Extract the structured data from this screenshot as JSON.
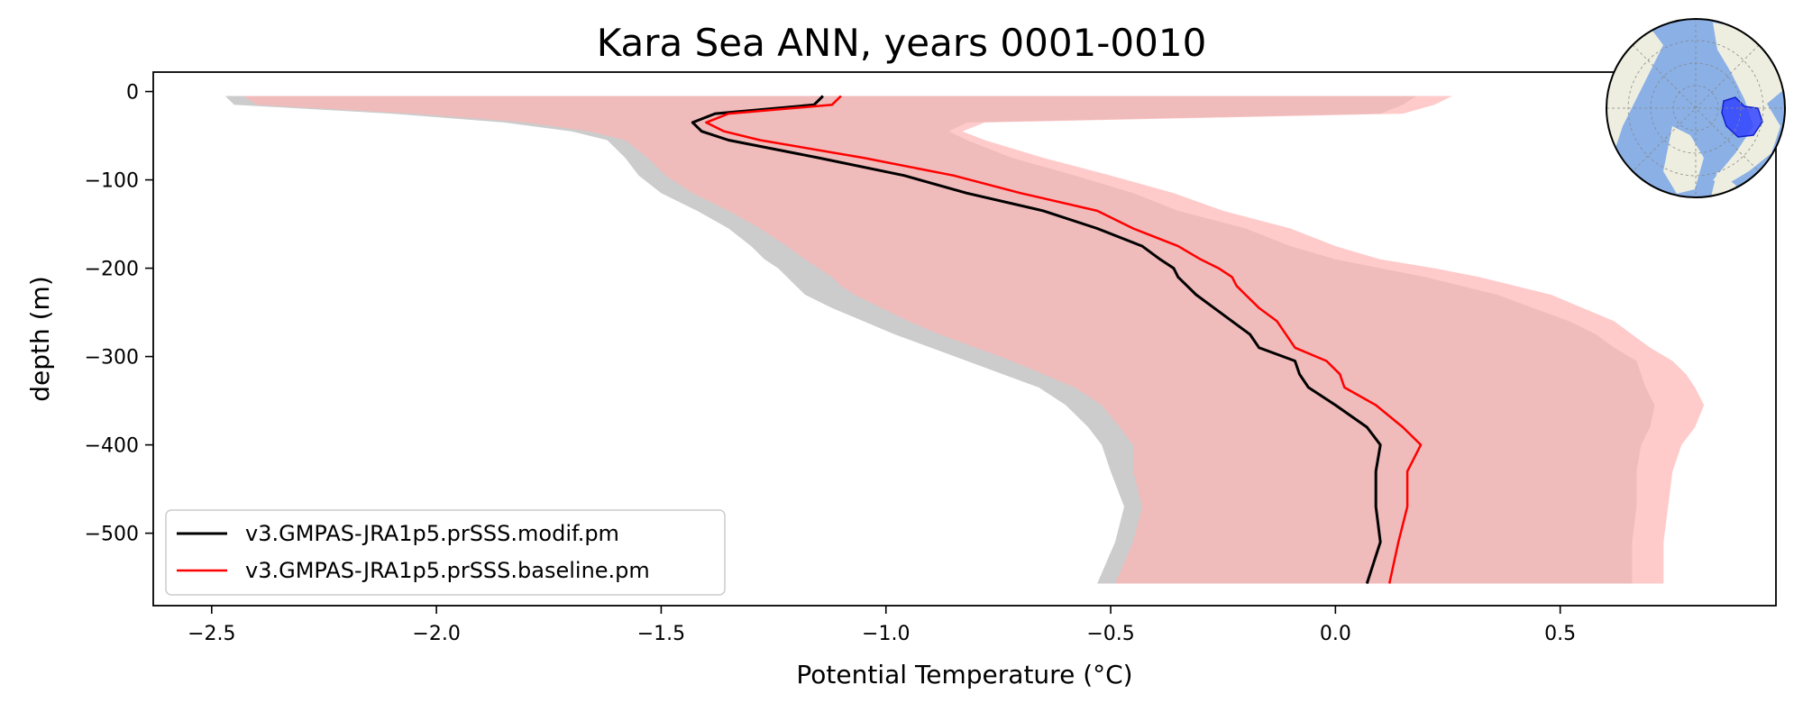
{
  "chart_data": {
    "type": "line",
    "title": "Kara Sea ANN, years 0001-0010",
    "xlabel": "Potential Temperature (°C)",
    "ylabel": "depth (m)",
    "xlim": [
      -2.63,
      0.98
    ],
    "ylim": [
      -582,
      22
    ],
    "xticks": [
      -2.5,
      -2.0,
      -1.5,
      -1.0,
      -0.5,
      0.0,
      0.5
    ],
    "xtick_labels": [
      "−2.5",
      "−2.0",
      "−1.5",
      "−1.0",
      "−0.5",
      "0.0",
      "0.5"
    ],
    "yticks": [
      0,
      -100,
      -200,
      -300,
      -400,
      -500
    ],
    "ytick_labels": [
      "0",
      "−100",
      "−200",
      "−300",
      "−400",
      "−500"
    ],
    "legend_position": "lower-left",
    "series": [
      {
        "name": "v3.GMPAS-JRA1p5.prSSS.modif.pm",
        "color": "#000000",
        "depth": [
          -5,
          -15,
          -25,
          -35,
          -45,
          -55,
          -75,
          -95,
          -115,
          -135,
          -155,
          -175,
          -190,
          -200,
          -210,
          -220,
          -230,
          -245,
          -260,
          -275,
          -290,
          -305,
          -320,
          -335,
          -355,
          -380,
          -400,
          -430,
          -470,
          -510,
          -557
        ],
        "values": [
          -1.14,
          -1.16,
          -1.38,
          -1.43,
          -1.41,
          -1.35,
          -1.15,
          -0.96,
          -0.82,
          -0.65,
          -0.53,
          -0.43,
          -0.39,
          -0.36,
          -0.35,
          -0.33,
          -0.31,
          -0.27,
          -0.23,
          -0.19,
          -0.17,
          -0.09,
          -0.08,
          -0.06,
          0.0,
          0.07,
          0.1,
          0.09,
          0.09,
          0.1,
          0.07
        ],
        "band_low": [
          -2.47,
          -2.45,
          -2.1,
          -1.85,
          -1.7,
          -1.62,
          -1.58,
          -1.55,
          -1.5,
          -1.42,
          -1.35,
          -1.3,
          -1.27,
          -1.24,
          -1.22,
          -1.2,
          -1.18,
          -1.12,
          -1.05,
          -0.98,
          -0.9,
          -0.82,
          -0.74,
          -0.66,
          -0.6,
          -0.55,
          -0.52,
          -0.5,
          -0.47,
          -0.49,
          -0.53
        ],
        "band_high": [
          0.18,
          0.15,
          0.1,
          -0.82,
          -0.86,
          -0.82,
          -0.72,
          -0.58,
          -0.45,
          -0.35,
          -0.2,
          -0.1,
          0.0,
          0.1,
          0.2,
          0.28,
          0.36,
          0.44,
          0.52,
          0.58,
          0.62,
          0.67,
          0.68,
          0.69,
          0.71,
          0.7,
          0.68,
          0.67,
          0.67,
          0.66,
          0.66
        ],
        "band_color": "#cccccc"
      },
      {
        "name": "v3.GMPAS-JRA1p5.prSSS.baseline.pm",
        "color": "#ff0000",
        "depth": [
          -5,
          -15,
          -25,
          -35,
          -45,
          -55,
          -75,
          -95,
          -115,
          -135,
          -155,
          -175,
          -190,
          -200,
          -210,
          -220,
          -230,
          -245,
          -260,
          -275,
          -290,
          -305,
          -320,
          -335,
          -355,
          -380,
          -400,
          -430,
          -470,
          -510,
          -557
        ],
        "values": [
          -1.1,
          -1.12,
          -1.35,
          -1.4,
          -1.36,
          -1.28,
          -1.05,
          -0.85,
          -0.7,
          -0.53,
          -0.45,
          -0.35,
          -0.3,
          -0.26,
          -0.23,
          -0.22,
          -0.2,
          -0.17,
          -0.13,
          -0.11,
          -0.09,
          -0.02,
          0.01,
          0.02,
          0.09,
          0.15,
          0.19,
          0.16,
          0.16,
          0.14,
          0.12
        ],
        "band_low": [
          -2.43,
          -2.4,
          -2.05,
          -1.8,
          -1.66,
          -1.58,
          -1.53,
          -1.49,
          -1.43,
          -1.35,
          -1.28,
          -1.22,
          -1.18,
          -1.15,
          -1.12,
          -1.1,
          -1.07,
          -1.01,
          -0.95,
          -0.88,
          -0.8,
          -0.72,
          -0.65,
          -0.58,
          -0.52,
          -0.48,
          -0.45,
          -0.45,
          -0.43,
          -0.45,
          -0.49
        ],
        "band_high": [
          0.26,
          0.22,
          0.15,
          -0.78,
          -0.83,
          -0.78,
          -0.65,
          -0.5,
          -0.36,
          -0.25,
          -0.1,
          0.0,
          0.1,
          0.22,
          0.32,
          0.4,
          0.48,
          0.55,
          0.62,
          0.66,
          0.7,
          0.75,
          0.78,
          0.8,
          0.82,
          0.8,
          0.77,
          0.75,
          0.74,
          0.73,
          0.73
        ],
        "band_color": "#ffb3b3"
      }
    ],
    "inset_map": {
      "label": "Kara Sea region",
      "highlight_color": "#3344ff"
    }
  }
}
